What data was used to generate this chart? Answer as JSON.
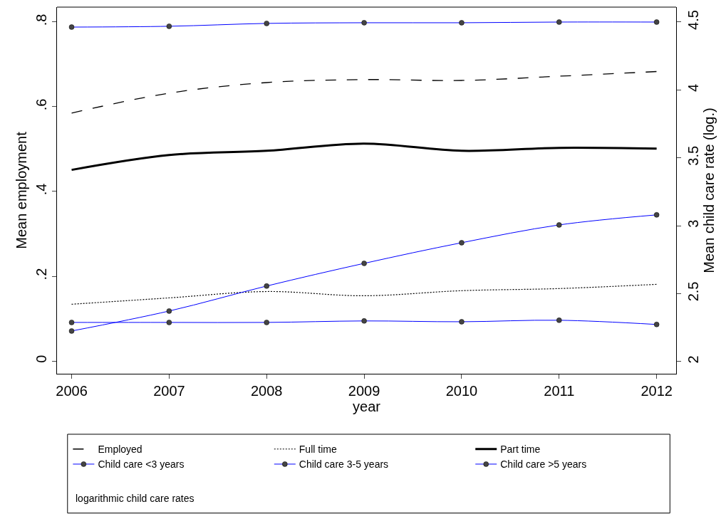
{
  "chart_data": {
    "type": "line",
    "xlabel": "year",
    "ylabel": "Mean employment",
    "y2label": "Mean child care rate (log.)",
    "x": [
      2006,
      2007,
      2008,
      2009,
      2010,
      2011,
      2012
    ],
    "xlim": [
      2005.85,
      2012.2
    ],
    "xticks": [
      2006,
      2007,
      2008,
      2009,
      2010,
      2011,
      2012
    ],
    "ylim": [
      -0.03,
      0.835
    ],
    "yticks": [
      {
        "value": 0,
        "label": "0"
      },
      {
        "value": 0.2,
        "label": ".2"
      },
      {
        "value": 0.4,
        "label": ".4"
      },
      {
        "value": 0.6,
        "label": ".6"
      },
      {
        "value": 0.8,
        "label": ".8"
      }
    ],
    "y2lim": [
      1.91,
      4.61
    ],
    "y2ticks": [
      2,
      2.5,
      3,
      3.5,
      4,
      4.5
    ],
    "grid": false,
    "legend": "bottom",
    "annotations": [
      "logarithmic child care rates"
    ],
    "series": [
      {
        "name": "Employed",
        "color": "#000000",
        "line_style": "dashed",
        "marker": "none",
        "values": [
          0.585,
          0.632,
          0.657,
          0.664,
          0.662,
          0.672,
          0.683
        ]
      },
      {
        "name": "Full time",
        "color": "#000000",
        "line_style": "dotted",
        "marker": "none",
        "values": [
          0.134,
          0.149,
          0.164,
          0.154,
          0.166,
          0.171,
          0.181
        ]
      },
      {
        "name": "Part time",
        "color": "#000000",
        "line_style": "solid",
        "marker": "none",
        "values": [
          0.451,
          0.486,
          0.496,
          0.513,
          0.496,
          0.503,
          0.501
        ]
      },
      {
        "name": "Child care <3 years",
        "color": "#0000ff",
        "line_style": "solid",
        "marker": "circle",
        "axis": "y2",
        "values": [
          2.225,
          2.372,
          2.556,
          2.723,
          2.875,
          3.006,
          3.08
        ]
      },
      {
        "name": "Child care 3-5 years",
        "color": "#0000ff",
        "line_style": "solid",
        "marker": "circle",
        "axis": "y2",
        "values": [
          4.463,
          4.469,
          4.49,
          4.495,
          4.495,
          4.5,
          4.5
        ]
      },
      {
        "name": "Child care >5 years",
        "color": "#0000ff",
        "line_style": "solid",
        "marker": "circle",
        "axis": "y2",
        "values": [
          2.288,
          2.288,
          2.288,
          2.299,
          2.293,
          2.304,
          2.273
        ]
      }
    ]
  }
}
